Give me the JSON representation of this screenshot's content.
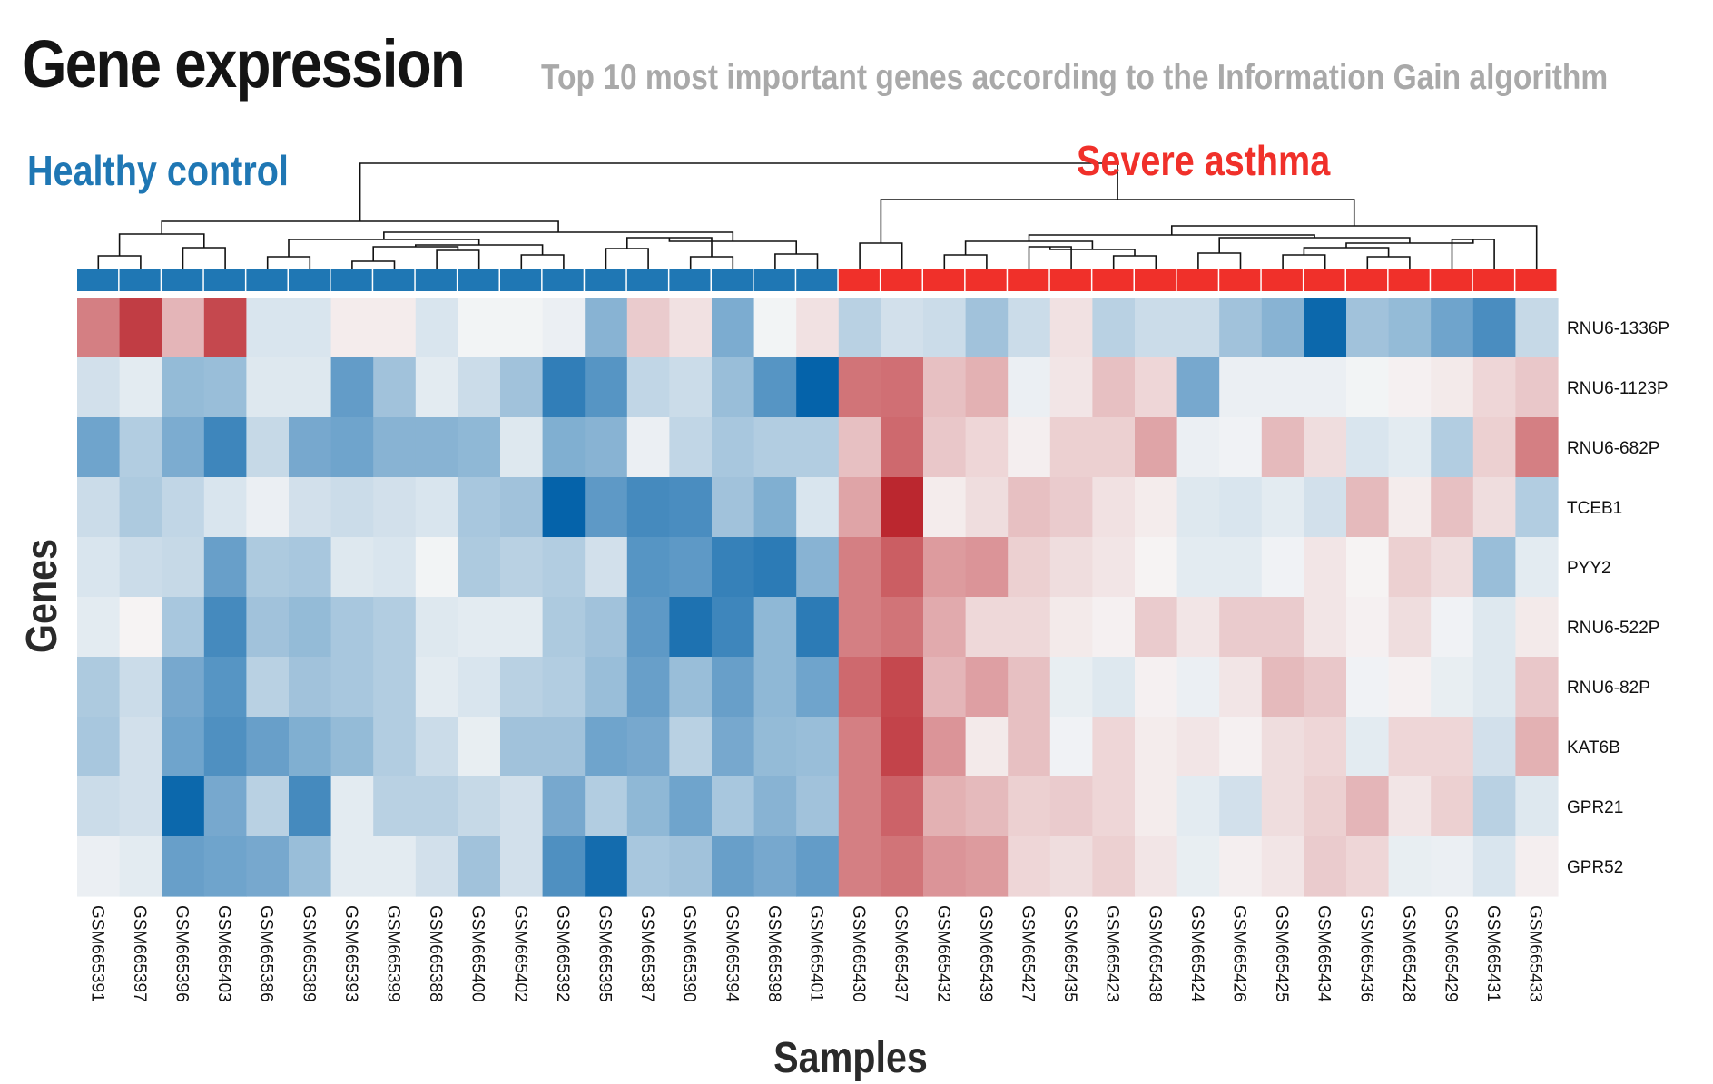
{
  "chart_data": {
    "type": "heatmap",
    "title": "Gene expression",
    "subtitle": "Top 10 most important genes according to the Information Gain algorithm",
    "xlabel": "Samples",
    "ylabel": "Genes",
    "groups": [
      {
        "name": "Healthy control",
        "color": "#1f77b4",
        "count": 18
      },
      {
        "name": "Severe asthma",
        "color": "#f0302a",
        "count": 17
      }
    ],
    "samples": [
      "GSM665391",
      "GSM665397",
      "GSM665396",
      "GSM665403",
      "GSM665386",
      "GSM665389",
      "GSM665393",
      "GSM665399",
      "GSM665388",
      "GSM665400",
      "GSM665402",
      "GSM665392",
      "GSM665395",
      "GSM665387",
      "GSM665390",
      "GSM665394",
      "GSM665398",
      "GSM665401",
      "GSM665430",
      "GSM665437",
      "GSM665432",
      "GSM665439",
      "GSM665427",
      "GSM665435",
      "GSM665423",
      "GSM665438",
      "GSM665424",
      "GSM665426",
      "GSM665425",
      "GSM665434",
      "GSM665436",
      "GSM665428",
      "GSM665429",
      "GSM665431",
      "GSM665433"
    ],
    "genes": [
      "RNU6-1336P",
      "RNU6-1123P",
      "RNU6-682P",
      "TCEB1",
      "PYY2",
      "RNU6-522P",
      "RNU6-82P",
      "KAT6B",
      "GPR21",
      "GPR52"
    ],
    "color_scale": {
      "min": -1,
      "max": 1,
      "low": "#0060a8",
      "mid": "#f7f7f7",
      "high": "#b81c24"
    },
    "values": [
      [
        0.55,
        0.85,
        0.3,
        0.8,
        -0.12,
        -0.12,
        0.05,
        0.05,
        -0.12,
        -0.02,
        -0.02,
        -0.05,
        -0.45,
        0.2,
        0.1,
        -0.5,
        -0.02,
        0.1,
        -0.25,
        -0.15,
        -0.18,
        -0.35,
        -0.18,
        0.1,
        -0.25,
        -0.18,
        -0.18,
        -0.35,
        -0.45,
        -0.95,
        -0.35,
        -0.4,
        -0.55,
        -0.7,
        -0.2
      ],
      [
        -0.15,
        -0.08,
        -0.4,
        -0.38,
        -0.1,
        -0.1,
        -0.6,
        -0.35,
        -0.08,
        -0.18,
        -0.35,
        -0.8,
        -0.65,
        -0.22,
        -0.18,
        -0.38,
        -0.65,
        -0.98,
        0.6,
        0.62,
        0.25,
        0.32,
        -0.05,
        0.08,
        0.25,
        0.15,
        -0.52,
        -0.05,
        -0.05,
        -0.05,
        -0.02,
        0.03,
        0.06,
        0.15,
        0.22
      ],
      [
        -0.55,
        -0.28,
        -0.5,
        -0.75,
        -0.2,
        -0.52,
        -0.55,
        -0.45,
        -0.45,
        -0.42,
        -0.1,
        -0.48,
        -0.45,
        -0.05,
        -0.22,
        -0.32,
        -0.28,
        -0.28,
        0.25,
        0.65,
        0.22,
        0.15,
        0.04,
        0.18,
        0.18,
        0.38,
        -0.05,
        -0.03,
        0.28,
        0.12,
        -0.12,
        -0.08,
        -0.28,
        0.18,
        0.55
      ],
      [
        -0.18,
        -0.3,
        -0.22,
        -0.12,
        -0.05,
        -0.15,
        -0.18,
        -0.15,
        -0.12,
        -0.32,
        -0.35,
        -0.98,
        -0.62,
        -0.72,
        -0.7,
        -0.35,
        -0.48,
        -0.12,
        0.38,
        0.95,
        0.05,
        0.12,
        0.25,
        0.2,
        0.1,
        0.05,
        -0.1,
        -0.12,
        -0.08,
        -0.15,
        0.28,
        0.05,
        0.25,
        0.12,
        -0.28
      ],
      [
        -0.12,
        -0.18,
        -0.2,
        -0.58,
        -0.3,
        -0.32,
        -0.1,
        -0.12,
        -0.02,
        -0.3,
        -0.25,
        -0.28,
        -0.15,
        -0.65,
        -0.62,
        -0.78,
        -0.82,
        -0.45,
        0.55,
        0.7,
        0.42,
        0.45,
        0.18,
        0.12,
        0.08,
        0.02,
        -0.08,
        -0.08,
        -0.03,
        0.08,
        0.02,
        0.18,
        0.12,
        -0.38,
        -0.08
      ],
      [
        -0.08,
        0.02,
        -0.32,
        -0.72,
        -0.35,
        -0.4,
        -0.32,
        -0.28,
        -0.1,
        -0.08,
        -0.08,
        -0.3,
        -0.35,
        -0.62,
        -0.88,
        -0.75,
        -0.42,
        -0.82,
        0.55,
        0.6,
        0.35,
        0.14,
        0.14,
        0.06,
        0.03,
        0.2,
        0.08,
        0.2,
        0.2,
        0.08,
        0.03,
        0.12,
        -0.03,
        -0.1,
        0.06
      ],
      [
        -0.3,
        -0.18,
        -0.52,
        -0.65,
        -0.25,
        -0.35,
        -0.32,
        -0.28,
        -0.08,
        -0.12,
        -0.25,
        -0.28,
        -0.38,
        -0.58,
        -0.38,
        -0.58,
        -0.42,
        -0.55,
        0.65,
        0.8,
        0.3,
        0.4,
        0.25,
        -0.06,
        -0.1,
        0.03,
        -0.05,
        0.08,
        0.28,
        0.22,
        -0.03,
        0.03,
        -0.06,
        -0.1,
        0.22
      ],
      [
        -0.32,
        -0.15,
        -0.55,
        -0.68,
        -0.58,
        -0.48,
        -0.4,
        -0.28,
        -0.18,
        -0.06,
        -0.35,
        -0.35,
        -0.55,
        -0.52,
        -0.25,
        -0.52,
        -0.4,
        -0.38,
        0.55,
        0.82,
        0.45,
        0.06,
        0.25,
        -0.03,
        0.15,
        0.05,
        0.08,
        0.03,
        0.12,
        0.15,
        -0.08,
        0.15,
        0.15,
        -0.15,
        0.32
      ],
      [
        -0.18,
        -0.15,
        -0.95,
        -0.52,
        -0.25,
        -0.72,
        -0.08,
        -0.25,
        -0.25,
        -0.2,
        -0.15,
        -0.52,
        -0.28,
        -0.42,
        -0.55,
        -0.32,
        -0.45,
        -0.35,
        0.55,
        0.68,
        0.32,
        0.28,
        0.18,
        0.2,
        0.15,
        0.05,
        -0.08,
        -0.15,
        0.12,
        0.18,
        0.3,
        0.08,
        0.18,
        -0.25,
        -0.1
      ],
      [
        -0.05,
        -0.08,
        -0.58,
        -0.55,
        -0.52,
        -0.38,
        -0.08,
        -0.08,
        -0.15,
        -0.35,
        -0.15,
        -0.68,
        -0.92,
        -0.32,
        -0.35,
        -0.58,
        -0.52,
        -0.6,
        0.55,
        0.6,
        0.45,
        0.42,
        0.15,
        0.12,
        0.18,
        0.08,
        -0.06,
        0.04,
        0.08,
        0.2,
        0.15,
        -0.06,
        -0.05,
        -0.12,
        0.04
      ]
    ],
    "dendrogram": {
      "groups": [
        [
          0,
          1
        ],
        [
          2,
          3
        ],
        [
          4,
          5
        ],
        [
          6,
          7
        ],
        [
          8,
          9
        ],
        [
          10,
          11
        ],
        [
          12,
          13
        ],
        [
          14,
          15
        ],
        [
          16,
          17
        ],
        [
          18,
          19
        ],
        [
          20,
          21
        ],
        [
          22,
          23
        ],
        [
          24,
          25
        ],
        [
          26,
          27
        ],
        [
          28,
          29
        ],
        [
          30,
          31
        ],
        [
          32,
          33
        ]
      ],
      "note_order": "leaf order equals samples order"
    }
  }
}
